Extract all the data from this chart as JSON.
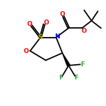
{
  "bg_color": "#ffffff",
  "atom_color_O": "#ff0000",
  "atom_color_N": "#0000ff",
  "atom_color_S": "#ccaa00",
  "atom_color_F": "#33aa33",
  "line_color": "#000000",
  "line_width": 1.3,
  "figsize": [
    1.52,
    1.52
  ],
  "dpi": 100,
  "xlim": [
    0,
    10
  ],
  "ylim": [
    0,
    10
  ]
}
